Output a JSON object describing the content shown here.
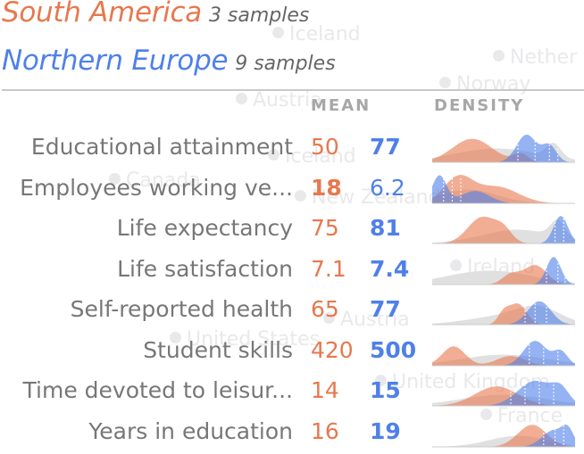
{
  "legend": [
    {
      "name": "South America",
      "count": "3 samples",
      "color": "#e7784e"
    },
    {
      "name": "Northern Europe",
      "count": "9 samples",
      "color": "#4f80ea"
    }
  ],
  "background_labels": [
    "Iceland",
    "Nether",
    "Norway",
    "Austria",
    "Iceland",
    "Canada",
    "New Zealand",
    "Ireland",
    "Austria",
    "United States",
    "United Kingdom",
    "France"
  ],
  "columns": {
    "mean": "MEAN",
    "density": "DENSITY"
  },
  "rows": [
    {
      "label": "Educational attainment",
      "sa_mean": "50",
      "ne_mean": "77",
      "bold": "ne"
    },
    {
      "label": "Employees working ve...",
      "sa_mean": "18",
      "ne_mean": "6.2",
      "bold": "sa"
    },
    {
      "label": "Life expectancy",
      "sa_mean": "75",
      "ne_mean": "81",
      "bold": "ne"
    },
    {
      "label": "Life satisfaction",
      "sa_mean": "7.1",
      "ne_mean": "7.4",
      "bold": "ne"
    },
    {
      "label": "Self-reported health",
      "sa_mean": "65",
      "ne_mean": "77",
      "bold": "ne"
    },
    {
      "label": "Student skills",
      "sa_mean": "420",
      "ne_mean": "500",
      "bold": "ne"
    },
    {
      "label": "Time devoted to leisur...",
      "sa_mean": "14",
      "ne_mean": "15",
      "bold": "ne"
    },
    {
      "label": "Years in education",
      "sa_mean": "16",
      "ne_mean": "19",
      "bold": "ne"
    }
  ],
  "colors": {
    "south_america": "#e7784e",
    "northern_europe": "#4f80ea",
    "overall": "#dddddd"
  }
}
